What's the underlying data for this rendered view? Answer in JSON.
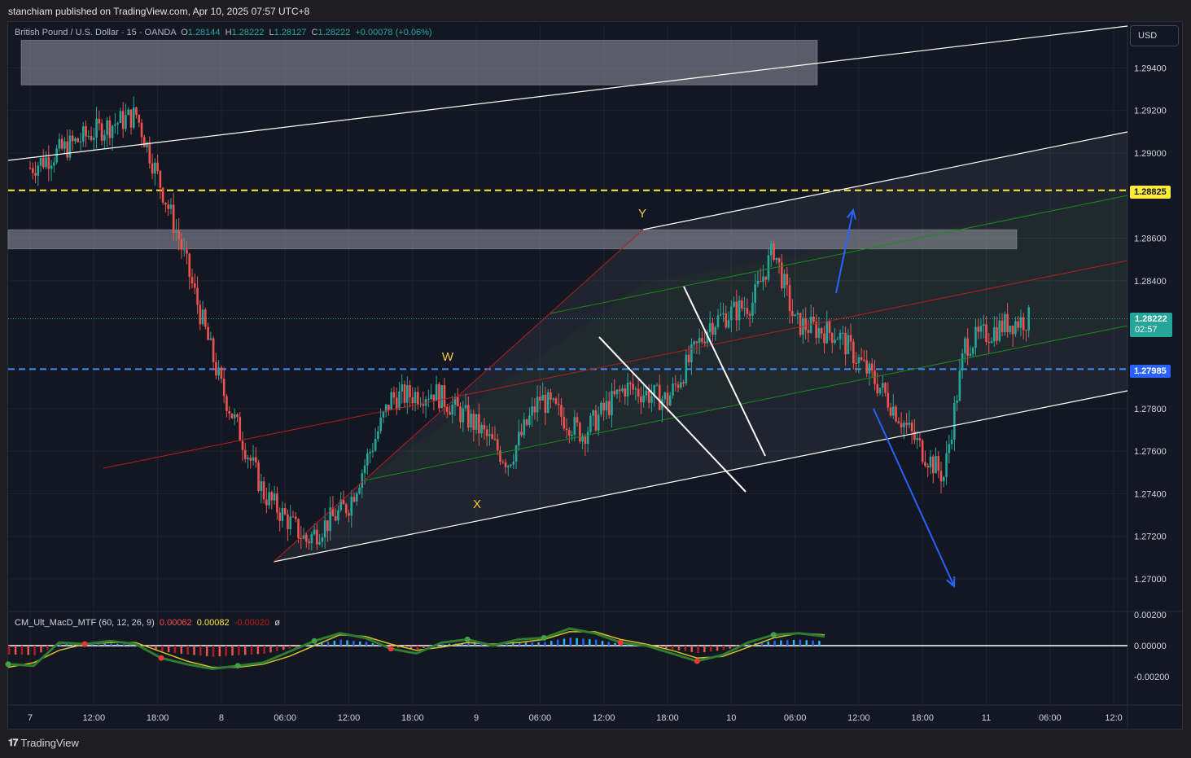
{
  "publisher": "stanchiam published on TradingView.com, Apr 10, 2025 07:57 UTC+8",
  "brand": "TradingView",
  "legend": {
    "symbol": "British Pound / U.S. Dollar · 15 · OANDA",
    "o_label": "O",
    "o": "1.28144",
    "h_label": "H",
    "h": "1.28222",
    "l_label": "L",
    "l": "1.28127",
    "c_label": "C",
    "c": "1.28222",
    "change": "+0.00078 (+0.06%)"
  },
  "currency_button": "USD",
  "price_tags": {
    "yellow_level": "1.28825",
    "current_price": "1.28222",
    "countdown": "02:57",
    "blue_level": "1.27985"
  },
  "wave_labels": [
    "W",
    "X",
    "Y"
  ],
  "indicator": {
    "name": "CM_Ult_MacD_MTF (60, 12, 26, 9)",
    "v1": "0.00062",
    "v2": "0.00082",
    "v3": "-0.00020",
    "v4": "ø"
  },
  "colors": {
    "background": "#131722",
    "up": "#26a69a",
    "down": "#ef5350",
    "yellow_level": "#ffeb3b",
    "blue_level": "#448aff",
    "channel": "#ffffff",
    "mid_channel": "#b71c1c",
    "inner_channel": "#1b8a1b",
    "arrow": "#2962ff"
  },
  "chart_data": [
    {
      "type": "candlestick",
      "title": "British Pound / U.S. Dollar · 15 · OANDA",
      "x_ticks": [
        "7",
        "12:00",
        "18:00",
        "8",
        "06:00",
        "12:00",
        "18:00",
        "9",
        "06:00",
        "12:00",
        "18:00",
        "10",
        "06:00",
        "12:00",
        "18:00",
        "11",
        "06:00",
        "12:0"
      ],
      "y_ticks": [
        "1.29400",
        "1.29200",
        "1.29000",
        "1.28600",
        "1.28400",
        "1.27800",
        "1.27600",
        "1.27400",
        "1.27200",
        "1.27000"
      ],
      "ylim": [
        1.269,
        1.2963
      ],
      "path_hours": [
        [
          0,
          1.2893
        ],
        [
          6,
          1.291
        ],
        [
          10,
          1.2918
        ],
        [
          14,
          1.286
        ],
        [
          18,
          1.279
        ],
        [
          22,
          1.274
        ],
        [
          26,
          1.2718
        ],
        [
          30,
          1.2735
        ],
        [
          34,
          1.2785
        ],
        [
          38,
          1.2788
        ],
        [
          42,
          1.2772
        ],
        [
          45,
          1.2755
        ],
        [
          48,
          1.2785
        ],
        [
          52,
          1.2768
        ],
        [
          56,
          1.279
        ],
        [
          60,
          1.2784
        ],
        [
          64,
          1.282
        ],
        [
          68,
          1.283
        ],
        [
          70,
          1.2855
        ],
        [
          72,
          1.282
        ],
        [
          76,
          1.2815
        ],
        [
          80,
          1.279
        ],
        [
          84,
          1.276
        ],
        [
          86,
          1.2748
        ],
        [
          88,
          1.281
        ],
        [
          92,
          1.282
        ],
        [
          94,
          1.2822
        ]
      ],
      "horizontal_levels": [
        1.28825,
        1.27985
      ],
      "supply_zones": [
        [
          1.2932,
          1.2953
        ],
        [
          1.2855,
          1.2864
        ]
      ],
      "wave_points": [
        {
          "label": "W",
          "x_hour": 52,
          "price": 1.2805
        },
        {
          "label": "X",
          "x_hour": 57,
          "price": 1.2742
        },
        {
          "label": "Y",
          "x_hour": 72,
          "price": 1.2868
        }
      ]
    },
    {
      "type": "line",
      "title": "CM_Ult_MacD_MTF (60, 12, 26, 9)",
      "y_ticks": [
        "0.00200",
        "0.00000",
        "-0.00200"
      ],
      "ylim": [
        -0.0025,
        0.0022
      ],
      "series": [
        {
          "values": [
            -0.0012,
            -0.0013,
            0.0002,
            0.0001,
            0.0003,
            0.0001,
            -0.0008,
            -0.0012,
            -0.0015,
            -0.0013,
            -0.0011,
            -0.0004,
            0.0003,
            0.0008,
            0.0005,
            -0.0002,
            -0.0005,
            0.0002,
            0.0004,
            0.0,
            0.0004,
            0.0005,
            0.0011,
            0.0008,
            0.0002,
            0.0,
            -0.0005,
            -0.001,
            -0.0006,
            0.0002,
            0.0007,
            0.0008,
            0.0006
          ]
        },
        {
          "values": [
            -0.0014,
            -0.0011,
            -0.0003,
            0.0001,
            0.0002,
            0.0002,
            -0.0004,
            -0.001,
            -0.0014,
            -0.0014,
            -0.0012,
            -0.0007,
            0.0,
            0.0007,
            0.0006,
            0.0001,
            -0.0003,
            -0.0001,
            0.0002,
            0.0001,
            0.0002,
            0.0004,
            0.0009,
            0.0009,
            0.0004,
            0.0001,
            -0.0003,
            -0.0008,
            -0.0007,
            -0.0001,
            0.0005,
            0.0008,
            0.0007
          ]
        }
      ]
    }
  ]
}
